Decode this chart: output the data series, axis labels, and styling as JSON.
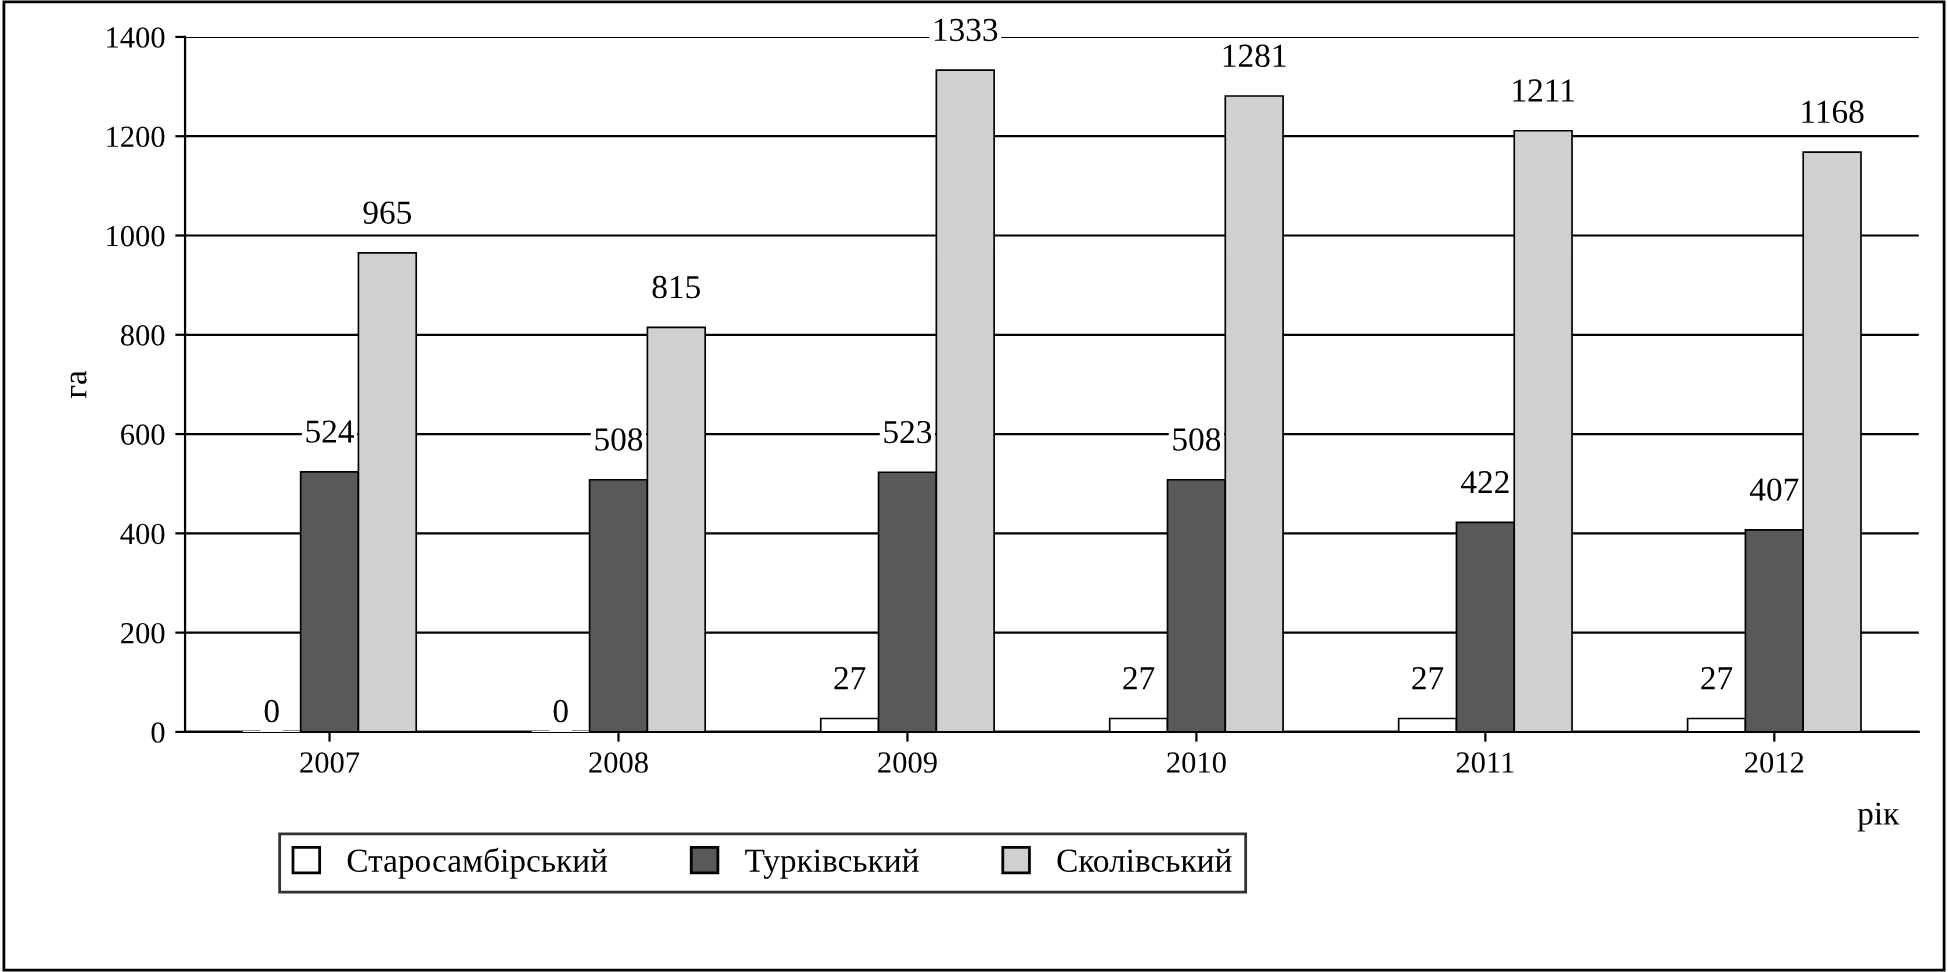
{
  "chart_data": {
    "type": "bar",
    "categories": [
      "2007",
      "2008",
      "2009",
      "2010",
      "2011",
      "2012"
    ],
    "series": [
      {
        "name": "Старосамбірський",
        "color": "#ffffff",
        "values": [
          0,
          0,
          27,
          27,
          27,
          27
        ]
      },
      {
        "name": "Турківський",
        "color": "#595959",
        "values": [
          524,
          508,
          523,
          508,
          422,
          407
        ]
      },
      {
        "name": "Сколівський",
        "color": "#d0d0d0",
        "values": [
          965,
          815,
          1333,
          1281,
          1211,
          1168
        ]
      }
    ],
    "ylabel": "га",
    "xlabel": "рік",
    "ylim": [
      0,
      1400
    ],
    "yticks": [
      0,
      200,
      400,
      600,
      800,
      1000,
      1200,
      1400
    ],
    "grid": "y",
    "legend": "bottom",
    "data_labels": true
  }
}
